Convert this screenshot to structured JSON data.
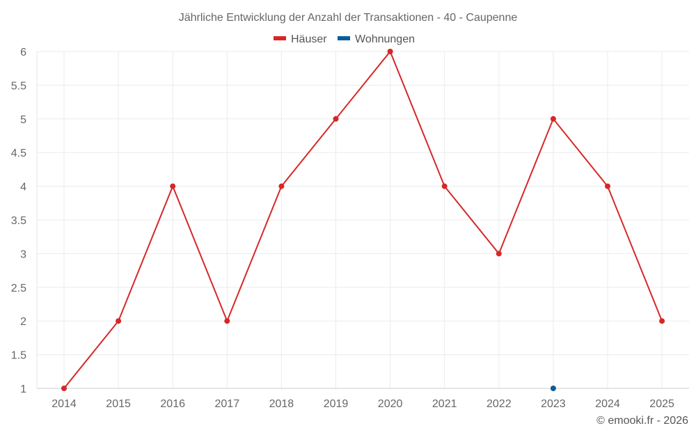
{
  "chart_data": {
    "type": "line",
    "title": "Jährliche Entwicklung der Anzahl der Transaktionen - 40 - Caupenne",
    "categories": [
      "2014",
      "2015",
      "2016",
      "2017",
      "2018",
      "2019",
      "2020",
      "2021",
      "2022",
      "2023",
      "2024",
      "2025"
    ],
    "series": [
      {
        "name": "Häuser",
        "color": "#d62728",
        "values": [
          1,
          2,
          4,
          2,
          4,
          5,
          6,
          4,
          3,
          5,
          4,
          2
        ]
      },
      {
        "name": "Wohnungen",
        "color": "#0a5d9a",
        "values": [
          null,
          null,
          null,
          null,
          null,
          null,
          null,
          null,
          null,
          1,
          null,
          null
        ]
      }
    ],
    "ylim": [
      1,
      6
    ],
    "yticks": [
      "1",
      "1.5",
      "2",
      "2.5",
      "3",
      "3.5",
      "4",
      "4.5",
      "5",
      "5.5",
      "6"
    ],
    "grid": true,
    "legend_position": "top-center"
  },
  "credit": "© emooki.fr - 2026"
}
